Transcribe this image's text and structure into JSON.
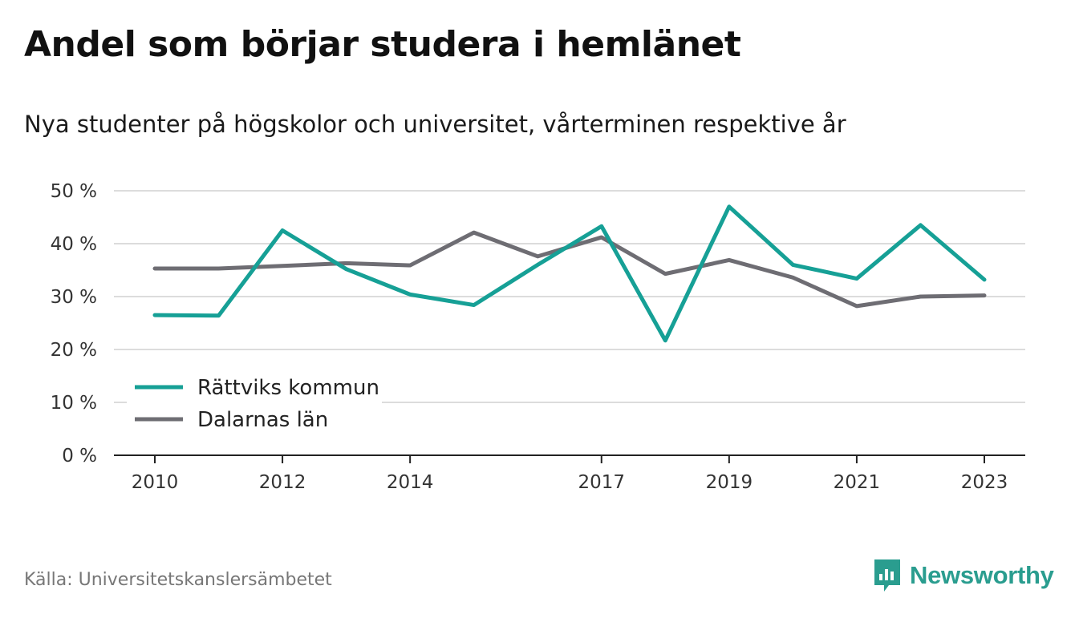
{
  "title": "Andel som börjar studera i hemlänet",
  "subtitle": "Nya studenter på högskolor och universitet, vårterminen respektive år",
  "source": "Källa: Universitetskanslersämbetet",
  "brand": {
    "name": "Newsworthy",
    "color": "#2a9d8f",
    "icon": "newsworthy-logo-icon"
  },
  "chart_data": {
    "type": "line",
    "x": [
      2010,
      2011,
      2012,
      2013,
      2014,
      2015,
      2016,
      2017,
      2018,
      2019,
      2020,
      2021,
      2022,
      2023
    ],
    "x_tick_labels": [
      "2010",
      "2012",
      "2014",
      "2017",
      "2019",
      "2021",
      "2023"
    ],
    "y_ticks": [
      0,
      10,
      20,
      30,
      40,
      50
    ],
    "y_tick_labels": [
      "0 %",
      "10 %",
      "20 %",
      "30 %",
      "40 %",
      "50 %"
    ],
    "ylim": [
      0,
      50
    ],
    "grid": true,
    "legend_position": "bottom-left",
    "series": [
      {
        "name": "Rättviks kommun",
        "color": "#16a096",
        "values": [
          26.5,
          26.4,
          42.5,
          35.2,
          30.4,
          28.4,
          36.0,
          43.3,
          21.7,
          47.0,
          36.0,
          33.4,
          43.5,
          33.2
        ]
      },
      {
        "name": "Dalarnas län",
        "color": "#6e6d73",
        "values": [
          35.3,
          35.3,
          35.8,
          36.3,
          35.9,
          42.1,
          37.6,
          41.2,
          34.3,
          36.9,
          33.6,
          28.2,
          30.0,
          30.2
        ]
      }
    ]
  }
}
